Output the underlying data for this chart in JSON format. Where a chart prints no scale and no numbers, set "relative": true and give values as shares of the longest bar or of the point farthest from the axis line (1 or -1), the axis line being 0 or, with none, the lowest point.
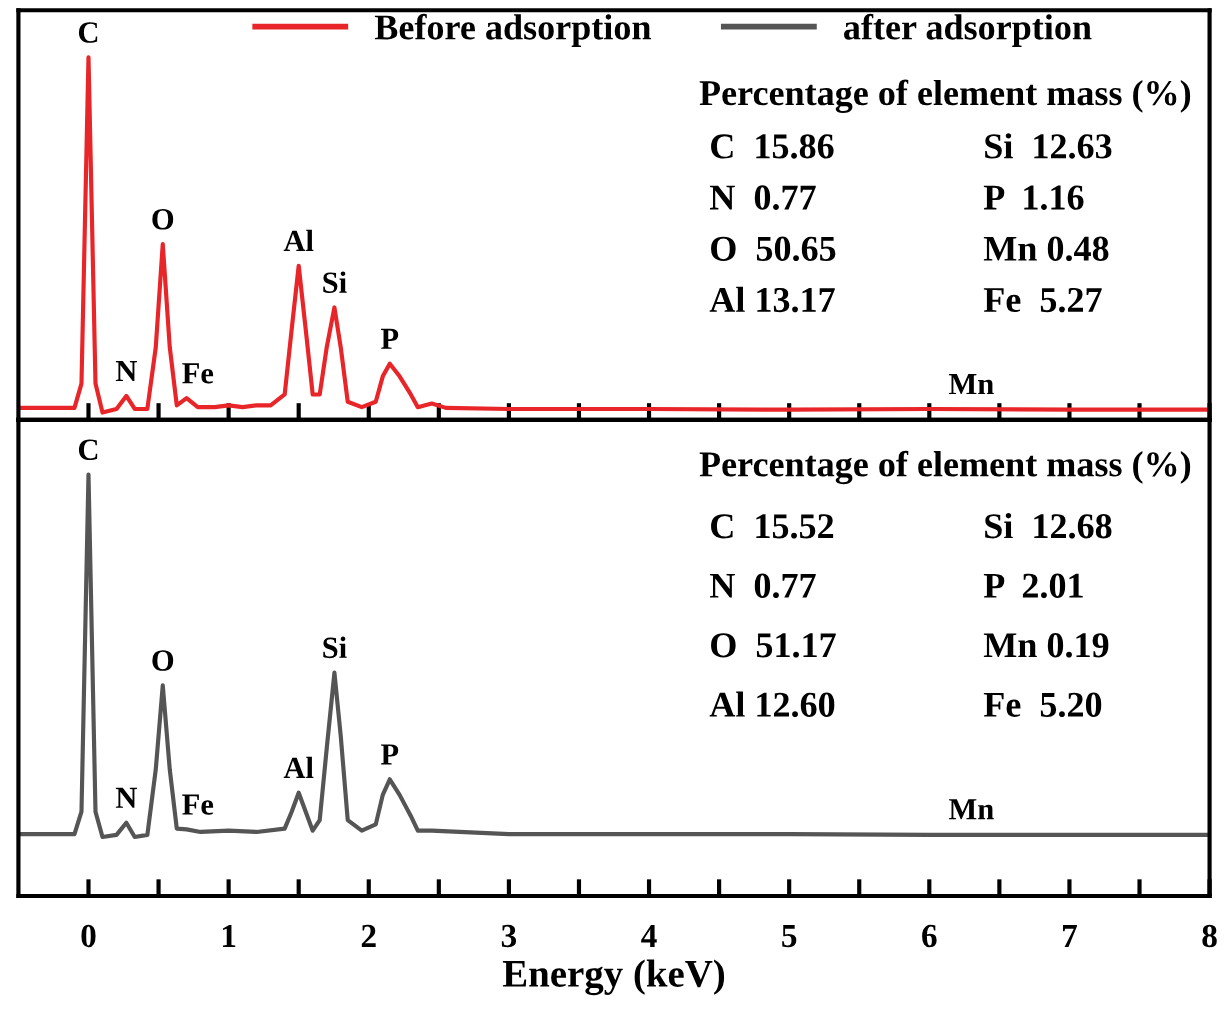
{
  "chart_data": [
    {
      "type": "line",
      "relative": true,
      "xlim": [
        -0.5,
        8
      ],
      "xticks": [
        0,
        {
          "value": 0.5,
          "label": null
        },
        1,
        {
          "value": 1.5,
          "label": null
        },
        2,
        {
          "value": 2.5,
          "label": null
        },
        3,
        {
          "value": 3.5,
          "label": null
        },
        4,
        {
          "value": 4.5,
          "label": null
        },
        5,
        {
          "value": 5.5,
          "label": null
        },
        6,
        {
          "value": 6.5,
          "label": null
        },
        7,
        {
          "value": 7.5,
          "label": null
        },
        8
      ],
      "tick_labels": false,
      "legend": "top",
      "grid": false,
      "series": [
        {
          "name": "Before adsorption",
          "color": "#e8262a",
          "x": [
            -0.5,
            -0.1,
            -0.05,
            0.0,
            0.05,
            0.1,
            0.2,
            0.27,
            0.33,
            0.42,
            0.48,
            0.53,
            0.58,
            0.63,
            0.7,
            0.78,
            0.9,
            1.0,
            1.1,
            1.2,
            1.3,
            1.4,
            1.45,
            1.5,
            1.55,
            1.6,
            1.65,
            1.7,
            1.755,
            1.8,
            1.85,
            1.95,
            2.05,
            2.1,
            2.15,
            2.22,
            2.3,
            2.35,
            2.45,
            2.55,
            3,
            4,
            5,
            6,
            7,
            8
          ],
          "values": [
            0.033,
            0.033,
            0.1,
            1.0,
            0.1,
            0.02,
            0.03,
            0.066,
            0.03,
            0.03,
            0.2,
            0.485,
            0.2,
            0.04,
            0.06,
            0.035,
            0.035,
            0.04,
            0.035,
            0.04,
            0.04,
            0.07,
            0.25,
            0.425,
            0.25,
            0.07,
            0.07,
            0.2,
            0.31,
            0.2,
            0.05,
            0.035,
            0.05,
            0.12,
            0.155,
            0.12,
            0.07,
            0.035,
            0.045,
            0.033,
            0.03,
            0.03,
            0.028,
            0.03,
            0.028,
            0.028
          ]
        }
      ],
      "annotations": [
        {
          "text": "C",
          "x": 0.0,
          "y": 1.0
        },
        {
          "text": "N",
          "x": 0.27,
          "y": 0.066
        },
        {
          "text": "O",
          "x": 0.53,
          "y": 0.485
        },
        {
          "text": "Fe",
          "x": 0.78,
          "y": 0.06
        },
        {
          "text": "Al",
          "x": 1.5,
          "y": 0.425
        },
        {
          "text": "Si",
          "x": 1.755,
          "y": 0.31
        },
        {
          "text": "P",
          "x": 2.15,
          "y": 0.155
        },
        {
          "text": "Mn",
          "x": 6.3,
          "y": 0.03
        },
        "Percentage of element mass (%)",
        "C  15.86",
        "Si  12.63",
        "N  0.77",
        "P  1.16",
        "O  50.65",
        "Mn 0.48",
        "Al 13.17",
        "Fe  5.27"
      ]
    },
    {
      "type": "line",
      "relative": true,
      "xlim": [
        -0.5,
        8
      ],
      "xticks": [
        0,
        {
          "value": 0.5,
          "label": null
        },
        1,
        {
          "value": 1.5,
          "label": null
        },
        2,
        {
          "value": 2.5,
          "label": null
        },
        3,
        {
          "value": 3.5,
          "label": null
        },
        4,
        {
          "value": 4.5,
          "label": null
        },
        5,
        {
          "value": 5.5,
          "label": null
        },
        6,
        {
          "value": 6.5,
          "label": null
        },
        7,
        {
          "value": 7.5,
          "label": null
        },
        8
      ],
      "tick_labels": "x",
      "xlabel": "Energy (keV)",
      "grid": false,
      "series": [
        {
          "name": "after adsorption",
          "color": "#555555",
          "x": [
            -0.5,
            -0.1,
            -0.05,
            0.0,
            0.05,
            0.1,
            0.2,
            0.27,
            0.33,
            0.42,
            0.48,
            0.53,
            0.58,
            0.63,
            0.7,
            0.8,
            1.0,
            1.2,
            1.4,
            1.45,
            1.5,
            1.55,
            1.6,
            1.65,
            1.7,
            1.755,
            1.8,
            1.85,
            1.95,
            2.05,
            2.1,
            2.15,
            2.22,
            2.3,
            2.35,
            2.45,
            3,
            4,
            5,
            6,
            7,
            8
          ],
          "values": [
            0.147,
            0.147,
            0.2,
            1.0,
            0.2,
            0.14,
            0.145,
            0.174,
            0.14,
            0.145,
            0.3,
            0.5,
            0.3,
            0.16,
            0.158,
            0.152,
            0.155,
            0.152,
            0.16,
            0.2,
            0.245,
            0.2,
            0.155,
            0.18,
            0.35,
            0.53,
            0.38,
            0.18,
            0.155,
            0.17,
            0.24,
            0.277,
            0.24,
            0.19,
            0.155,
            0.155,
            0.147,
            0.147,
            0.147,
            0.145,
            0.145,
            0.145
          ]
        }
      ],
      "annotations": [
        {
          "text": "C",
          "x": 0.0,
          "y": 1.0
        },
        {
          "text": "N",
          "x": 0.27,
          "y": 0.174
        },
        {
          "text": "O",
          "x": 0.53,
          "y": 0.5
        },
        {
          "text": "Fe",
          "x": 0.78,
          "y": 0.158
        },
        {
          "text": "Al",
          "x": 1.5,
          "y": 0.245
        },
        {
          "text": "Si",
          "x": 1.755,
          "y": 0.53
        },
        {
          "text": "P",
          "x": 2.15,
          "y": 0.277
        },
        {
          "text": "Mn",
          "x": 6.3,
          "y": 0.147
        },
        "Percentage of element mass (%)",
        "C  15.52",
        "Si  12.68",
        "N  0.77",
        "P  2.01",
        "O  51.17",
        "Mn 0.19",
        "Al 12.60",
        "Fe  5.20"
      ]
    }
  ]
}
